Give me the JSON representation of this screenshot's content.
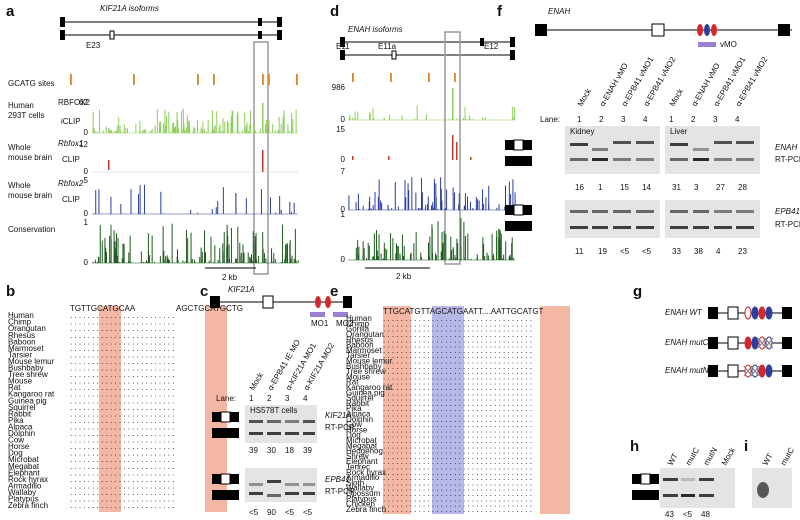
{
  "a": {
    "letter": "a",
    "title": "KIF21A isoforms",
    "exon": "E23",
    "gcatg": "GCATG sites",
    "t1": [
      "Human",
      "293T cells"
    ],
    "t1b": [
      "RBFOX2",
      "iCLIP"
    ],
    "t1s": [
      "62",
      "0"
    ],
    "t2": [
      "Whole",
      "mouse brain"
    ],
    "t2b": [
      "Rbfox1",
      "CLIP"
    ],
    "t2s": [
      "12",
      "0"
    ],
    "t3": [
      "Whole",
      "mouse brain"
    ],
    "t3b": [
      "Rbfox2",
      "CLIP"
    ],
    "t3s": [
      "5",
      "0"
    ],
    "cons": "Conservation",
    "t4s": [
      "1",
      "0"
    ],
    "scale": "2 kb"
  },
  "d": {
    "letter": "d",
    "title": "ENAH isoforms",
    "exons": [
      "E11",
      "E11a",
      "E12"
    ],
    "s1": [
      "986",
      "0"
    ],
    "s2": [
      "15",
      "0"
    ],
    "s3": [
      "7",
      "0"
    ],
    "s4": [
      "1",
      "0"
    ],
    "scale": "2 kb"
  },
  "f": {
    "letter": "f",
    "gene": "ENAH",
    "vmo": "vMO",
    "lanes_head": [
      "Mock",
      "α-ENAH vMO",
      "α-EPB41 vMO1",
      "α-EPB41 vMO2",
      "Mock",
      "α-ENAH vMO",
      "α-EPB41 vMO1",
      "α-EPB41 vMO2"
    ],
    "lane": "Lane:",
    "lane_nums": [
      "1",
      "2",
      "3",
      "4",
      "1",
      "2",
      "3",
      "4"
    ],
    "kidney": "Kidney",
    "liver": "Liver",
    "g1": [
      "ENAH",
      "RT-PCR"
    ],
    "n1": [
      "16",
      "1",
      "15",
      "14",
      "31",
      "3",
      "27",
      "28"
    ],
    "g2": [
      "EPB41",
      "RT-PCR"
    ],
    "n2": [
      "11",
      "19",
      "<5",
      "<5",
      "33",
      "38",
      "4",
      "23"
    ]
  },
  "b": {
    "letter": "b",
    "species": [
      "Human",
      "Chimp",
      "Orangutan",
      "Rhesus",
      "Baboon",
      "Marmoset",
      "Tarsier",
      "Mouse lemur",
      "Bushbaby",
      "Tree shrew",
      "Mouse",
      "Rat",
      "Kangaroo rat",
      "Guinea pig",
      "Squirrel",
      "Rabbit",
      "Pika",
      "Alpaca",
      "Dolphin",
      "Cow",
      "Horse",
      "Dog",
      "Microbat",
      "Megabat",
      "Elephant",
      "Rock hyrax",
      "Armadillo",
      "Wallaby",
      "Platypus",
      "Zebra finch"
    ],
    "seq": [
      "TGTTGCATGCAA",
      "AGCTGCATGCTG"
    ]
  },
  "c": {
    "letter": "c",
    "gene": "KIF21A",
    "mo": [
      "MO1",
      "MO2"
    ],
    "lanes_head": [
      "Mock",
      "α-EPB41 IE MO",
      "α-KIF21A MO1",
      "α-KIF21A MO2"
    ],
    "lane": "Lane:",
    "lane_nums": [
      "1",
      "2",
      "3",
      "4"
    ],
    "cells": "HS578T cells",
    "g1": [
      "KIF21A",
      "RT-PCR"
    ],
    "n1": [
      "39",
      "30",
      "18",
      "39"
    ],
    "g2": [
      "EPB41",
      "RT-PCR"
    ],
    "n2": [
      "<5",
      "90",
      "<5",
      "<5"
    ]
  },
  "e": {
    "letter": "e",
    "species": [
      "Human",
      "Chimp",
      "Gorilla",
      "Orangutan",
      "Rhesus",
      "Baboon",
      "Marmoset",
      "Tarsier",
      "Mouse lemur",
      "Bushbaby",
      "Tree shrew",
      "Mouse",
      "Rat",
      "Kangaroo rat",
      "Guinea pig",
      "Squirrel",
      "Rabbit",
      "Pika",
      "Alpaca",
      "Dolphin",
      "Cow",
      "Horse",
      "Dog",
      "Microbat",
      "Megabat",
      "Hedgehog",
      "Shrew",
      "Elephant",
      "Tenrec",
      "Rock hyrax",
      "Armadillo",
      "Sloth",
      "Wallaby",
      "Opossum",
      "Platypus",
      "Chicken",
      "Zebra finch"
    ],
    "seq": "TTGCATGTTAGCATGAATT....AATTGCATGT"
  },
  "g": {
    "letter": "g",
    "rows": [
      "ENAH WT",
      "ENAH mutC",
      "ENAH mutN"
    ]
  },
  "h": {
    "letter": "h",
    "lanes": [
      "WT",
      "mutC",
      "mutN",
      "Mock"
    ],
    "nums": [
      "43",
      "<5",
      "48"
    ]
  },
  "i": {
    "letter": "i",
    "lanes": [
      "WT",
      "mutC"
    ]
  }
}
